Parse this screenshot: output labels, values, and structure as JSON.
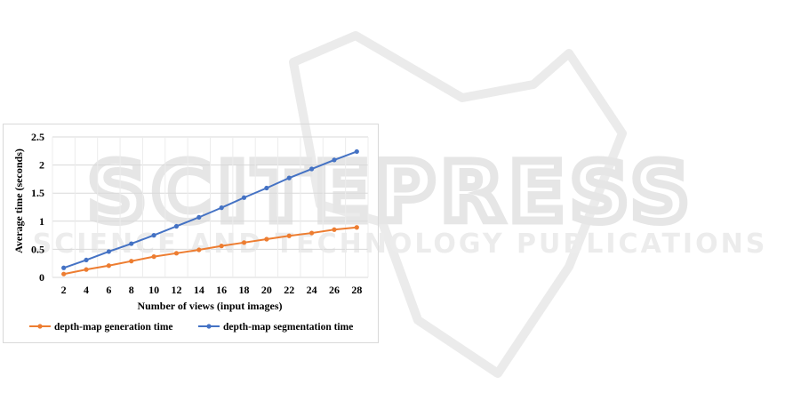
{
  "colors": {
    "series_orange": "#ED7D31",
    "series_blue": "#4472C4",
    "grid": "#d9d9d9",
    "watermark": "#e6e6e6"
  },
  "watermark": {
    "main": "SCITEPRESS",
    "sub": "SCIENCE AND TECHNOLOGY PUBLICATIONS"
  },
  "chart_data": {
    "type": "line",
    "title": "",
    "xlabel": "Number of views (input images)",
    "ylabel": "Average time (seconds)",
    "x": [
      2,
      4,
      6,
      8,
      10,
      12,
      14,
      16,
      18,
      20,
      22,
      24,
      26,
      28
    ],
    "ylim": [
      0,
      2.5
    ],
    "yticks": [
      0,
      0.5,
      1,
      1.5,
      2,
      2.5
    ],
    "ytick_labels": [
      "0",
      "0.5",
      "1",
      "1.5",
      "2",
      "2.5"
    ],
    "grid": true,
    "legend_position": "bottom",
    "series": [
      {
        "name": "depth-map generation time",
        "color": "#ED7D31",
        "values": [
          0.06,
          0.14,
          0.21,
          0.29,
          0.37,
          0.43,
          0.49,
          0.56,
          0.62,
          0.68,
          0.74,
          0.79,
          0.85,
          0.89
        ]
      },
      {
        "name": "depth-map segmentation time",
        "color": "#4472C4",
        "values": [
          0.17,
          0.31,
          0.46,
          0.6,
          0.75,
          0.91,
          1.07,
          1.24,
          1.42,
          1.59,
          1.77,
          1.93,
          2.09,
          2.24
        ]
      }
    ]
  }
}
